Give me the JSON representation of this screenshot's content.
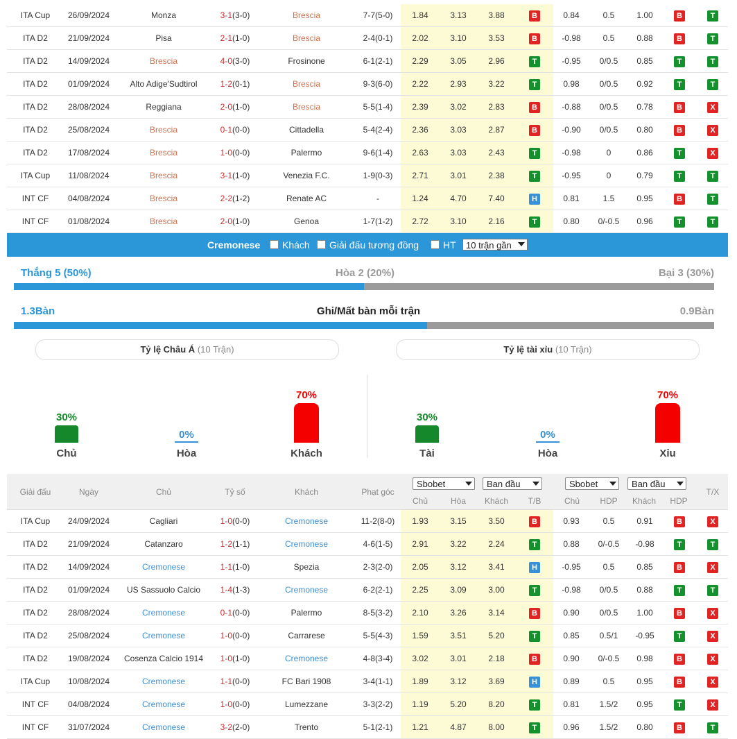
{
  "top_rows": [
    {
      "league": "ITA Cup",
      "date": "26/09/2024",
      "home": "Monza",
      "home_style": "plain",
      "score": "3-1",
      "ht": "(3-0)",
      "away": "Brescia",
      "away_style": "red",
      "corner": "7-7(5-0)",
      "o1": "1.84",
      "o2": "3.13",
      "o3": "3.88",
      "r1": "B",
      "h1": "0.84",
      "h2": "0.5",
      "h3": "1.00",
      "r2": "B",
      "r3": "T"
    },
    {
      "league": "ITA D2",
      "date": "21/09/2024",
      "home": "Pisa",
      "home_style": "plain",
      "score": "2-1",
      "ht": "(1-0)",
      "away": "Brescia",
      "away_style": "red",
      "corner": "2-4(0-1)",
      "o1": "2.02",
      "o2": "3.10",
      "o3": "3.53",
      "r1": "B",
      "h1": "-0.98",
      "h2": "0.5",
      "h3": "0.88",
      "r2": "B",
      "r3": "T"
    },
    {
      "league": "ITA D2",
      "date": "14/09/2024",
      "home": "Brescia",
      "home_style": "red",
      "score": "4-0",
      "ht": "(3-0)",
      "away": "Frosinone",
      "away_style": "plain",
      "corner": "6-1(2-1)",
      "o1": "2.29",
      "o2": "3.05",
      "o3": "2.96",
      "r1": "T",
      "h1": "-0.95",
      "h2": "0/0.5",
      "h3": "0.85",
      "r2": "T",
      "r3": "T"
    },
    {
      "league": "ITA D2",
      "date": "01/09/2024",
      "home": "Alto Adige'Sudtirol",
      "home_style": "plain",
      "score": "1-2",
      "ht": "(0-1)",
      "away": "Brescia",
      "away_style": "red",
      "corner": "9-3(6-0)",
      "o1": "2.22",
      "o2": "2.93",
      "o3": "3.22",
      "r1": "T",
      "h1": "0.98",
      "h2": "0/0.5",
      "h3": "0.92",
      "r2": "T",
      "r3": "T"
    },
    {
      "league": "ITA D2",
      "date": "28/08/2024",
      "home": "Reggiana",
      "home_style": "plain",
      "score": "2-0",
      "ht": "(1-0)",
      "away": "Brescia",
      "away_style": "red",
      "corner": "5-5(1-4)",
      "o1": "2.39",
      "o2": "3.02",
      "o3": "2.83",
      "r1": "B",
      "h1": "-0.88",
      "h2": "0/0.5",
      "h3": "0.78",
      "r2": "B",
      "r3": "X"
    },
    {
      "league": "ITA D2",
      "date": "25/08/2024",
      "home": "Brescia",
      "home_style": "red",
      "score": "0-1",
      "ht": "(0-0)",
      "away": "Cittadella",
      "away_style": "plain",
      "corner": "5-4(2-4)",
      "o1": "2.36",
      "o2": "3.03",
      "o3": "2.87",
      "r1": "B",
      "h1": "-0.90",
      "h2": "0/0.5",
      "h3": "0.80",
      "r2": "B",
      "r3": "X"
    },
    {
      "league": "ITA D2",
      "date": "17/08/2024",
      "home": "Brescia",
      "home_style": "red",
      "score": "1-0",
      "ht": "(0-0)",
      "away": "Palermo",
      "away_style": "plain",
      "corner": "9-6(1-4)",
      "o1": "2.63",
      "o2": "3.03",
      "o3": "2.43",
      "r1": "T",
      "h1": "-0.98",
      "h2": "0",
      "h3": "0.86",
      "r2": "T",
      "r3": "X"
    },
    {
      "league": "ITA Cup",
      "date": "11/08/2024",
      "home": "Brescia",
      "home_style": "red",
      "score": "3-1",
      "ht": "(1-0)",
      "away": "Venezia F.C.",
      "away_style": "plain",
      "corner": "1-9(0-3)",
      "o1": "2.71",
      "o2": "3.01",
      "o3": "2.38",
      "r1": "T",
      "h1": "-0.95",
      "h2": "0",
      "h3": "0.79",
      "r2": "T",
      "r3": "T"
    },
    {
      "league": "INT CF",
      "date": "04/08/2024",
      "home": "Brescia",
      "home_style": "red",
      "score": "2-2",
      "ht": "(1-2)",
      "away": "Renate AC",
      "away_style": "plain",
      "corner": "-",
      "o1": "1.24",
      "o2": "4.70",
      "o3": "7.40",
      "r1": "H",
      "h1": "0.81",
      "h2": "1.5",
      "h3": "0.95",
      "r2": "B",
      "r3": "T"
    },
    {
      "league": "INT CF",
      "date": "01/08/2024",
      "home": "Brescia",
      "home_style": "red",
      "score": "2-0",
      "ht": "(1-0)",
      "away": "Genoa",
      "away_style": "plain",
      "corner": "1-7(1-2)",
      "o1": "2.72",
      "o2": "3.10",
      "o3": "2.16",
      "r1": "T",
      "h1": "0.80",
      "h2": "0/-0.5",
      "h3": "0.96",
      "r2": "T",
      "r3": "T"
    }
  ],
  "filter_bar": {
    "team": "Cremonese",
    "away_label": "Khách",
    "same_league_label": "Giải đấu tương đồng",
    "ht_label": "HT",
    "count_select": "10 trận gần"
  },
  "summary": {
    "win": "Thắng 5 (50%)",
    "draw": "Hòa 2 (20%)",
    "loss": "Bại 3 (30%)",
    "win_fraction": 0.5,
    "goals_left": "1.3Bàn",
    "goals_title": "Ghi/Mất bàn mỗi trận",
    "goals_right": "0.9Bàn",
    "goals_fraction": 0.59
  },
  "panels": {
    "asian": {
      "title": "Tỷ lệ Châu Á",
      "sub": "(10 Trận)"
    },
    "ou": {
      "title": "Tỷ lệ tài xỉu",
      "sub": "(10 Trận)"
    }
  },
  "vchart_left": [
    {
      "pct": "30%",
      "value": 30,
      "label": "Chủ",
      "color": "#14882a"
    },
    {
      "pct": "0%",
      "value": 0,
      "label": "Hòa",
      "color": "#3891d6"
    },
    {
      "pct": "70%",
      "value": 70,
      "label": "Khách",
      "color": "#f40000"
    }
  ],
  "vchart_right": [
    {
      "pct": "30%",
      "value": 30,
      "label": "Tài",
      "color": "#14882a"
    },
    {
      "pct": "0%",
      "value": 0,
      "label": "Hòa",
      "color": "#3891d6"
    },
    {
      "pct": "70%",
      "value": 70,
      "label": "Xỉu",
      "color": "#f40000"
    }
  ],
  "header": {
    "league": "Giải đấu",
    "date": "Ngày",
    "home": "Chủ",
    "score": "Tỷ số",
    "away": "Khách",
    "corner": "Phạt góc",
    "book1": "Sbobet",
    "type1": "Ban đầu",
    "book2": "Sbobet",
    "type2": "Ban đầu",
    "sub_home": "Chủ",
    "sub_draw": "Hòa",
    "sub_away": "Khách",
    "sub_tb": "T/B",
    "sub_home2": "Chủ",
    "sub_hdp": "HDP",
    "sub_away2": "Khách",
    "sub_hdp2": "HDP",
    "tx": "T/X"
  },
  "bottom_rows": [
    {
      "league": "ITA Cup",
      "date": "24/09/2024",
      "home": "Cagliari",
      "home_style": "plain",
      "score": "1-0",
      "ht": "(0-0)",
      "away": "Cremonese",
      "away_style": "blue",
      "corner": "11-2(8-0)",
      "o1": "1.93",
      "o2": "3.15",
      "o3": "3.50",
      "r1": "B",
      "h1": "0.93",
      "h2": "0.5",
      "h3": "0.91",
      "r2": "B",
      "r3": "X"
    },
    {
      "league": "ITA D2",
      "date": "21/09/2024",
      "home": "Catanzaro",
      "home_style": "plain",
      "score": "1-2",
      "ht": "(1-1)",
      "away": "Cremonese",
      "away_style": "blue",
      "corner": "4-6(1-5)",
      "o1": "2.91",
      "o2": "3.22",
      "o3": "2.24",
      "r1": "T",
      "h1": "0.88",
      "h2": "0/-0.5",
      "h3": "-0.98",
      "r2": "T",
      "r3": "T"
    },
    {
      "league": "ITA D2",
      "date": "14/09/2024",
      "home": "Cremonese",
      "home_style": "blue",
      "score": "1-1",
      "ht": "(1-0)",
      "away": "Spezia",
      "away_style": "plain",
      "corner": "2-3(2-0)",
      "o1": "2.05",
      "o2": "3.12",
      "o3": "3.41",
      "r1": "H",
      "h1": "-0.95",
      "h2": "0.5",
      "h3": "0.85",
      "r2": "B",
      "r3": "X"
    },
    {
      "league": "ITA D2",
      "date": "01/09/2024",
      "home": "US Sassuolo Calcio",
      "home_style": "plain",
      "score": "1-4",
      "ht": "(1-3)",
      "away": "Cremonese",
      "away_style": "blue",
      "corner": "6-2(2-1)",
      "o1": "2.25",
      "o2": "3.09",
      "o3": "3.00",
      "r1": "T",
      "h1": "-0.98",
      "h2": "0/0.5",
      "h3": "0.88",
      "r2": "T",
      "r3": "T"
    },
    {
      "league": "ITA D2",
      "date": "28/08/2024",
      "home": "Cremonese",
      "home_style": "blue",
      "score": "0-1",
      "ht": "(0-0)",
      "away": "Palermo",
      "away_style": "plain",
      "corner": "8-5(3-2)",
      "o1": "2.10",
      "o2": "3.26",
      "o3": "3.14",
      "r1": "B",
      "h1": "0.90",
      "h2": "0/0.5",
      "h3": "1.00",
      "r2": "B",
      "r3": "X"
    },
    {
      "league": "ITA D2",
      "date": "25/08/2024",
      "home": "Cremonese",
      "home_style": "blue",
      "score": "1-0",
      "ht": "(0-0)",
      "away": "Carrarese",
      "away_style": "plain",
      "corner": "5-5(4-3)",
      "o1": "1.59",
      "o2": "3.51",
      "o3": "5.20",
      "r1": "T",
      "h1": "0.85",
      "h2": "0.5/1",
      "h3": "-0.95",
      "r2": "T",
      "r3": "X"
    },
    {
      "league": "ITA D2",
      "date": "19/08/2024",
      "home": "Cosenza Calcio 1914",
      "home_style": "plain",
      "score": "1-0",
      "ht": "(1-0)",
      "away": "Cremonese",
      "away_style": "blue",
      "corner": "4-8(3-4)",
      "o1": "3.02",
      "o2": "3.01",
      "o3": "2.18",
      "r1": "B",
      "h1": "0.90",
      "h2": "0/-0.5",
      "h3": "0.98",
      "r2": "B",
      "r3": "X"
    },
    {
      "league": "ITA Cup",
      "date": "10/08/2024",
      "home": "Cremonese",
      "home_style": "blue",
      "score": "1-1",
      "ht": "(0-0)",
      "away": "FC Bari 1908",
      "away_style": "plain",
      "corner": "3-4(1-1)",
      "o1": "1.89",
      "o2": "3.12",
      "o3": "3.69",
      "r1": "H",
      "h1": "0.89",
      "h2": "0.5",
      "h3": "0.95",
      "r2": "B",
      "r3": "X"
    },
    {
      "league": "INT CF",
      "date": "04/08/2024",
      "home": "Cremonese",
      "home_style": "blue",
      "score": "1-0",
      "ht": "(0-0)",
      "away": "Lumezzane",
      "away_style": "plain",
      "corner": "3-3(2-2)",
      "o1": "1.19",
      "o2": "5.20",
      "o3": "8.20",
      "r1": "T",
      "h1": "0.81",
      "h2": "1.5/2",
      "h3": "0.95",
      "r2": "T",
      "r3": "X"
    },
    {
      "league": "INT CF",
      "date": "31/07/2024",
      "home": "Cremonese",
      "home_style": "blue",
      "score": "3-2",
      "ht": "(2-0)",
      "away": "Trento",
      "away_style": "plain",
      "corner": "5-1(2-1)",
      "o1": "1.21",
      "o2": "4.87",
      "o3": "8.00",
      "r1": "T",
      "h1": "0.96",
      "h2": "1.5/2",
      "h3": "0.80",
      "r2": "B",
      "r3": "T"
    }
  ]
}
